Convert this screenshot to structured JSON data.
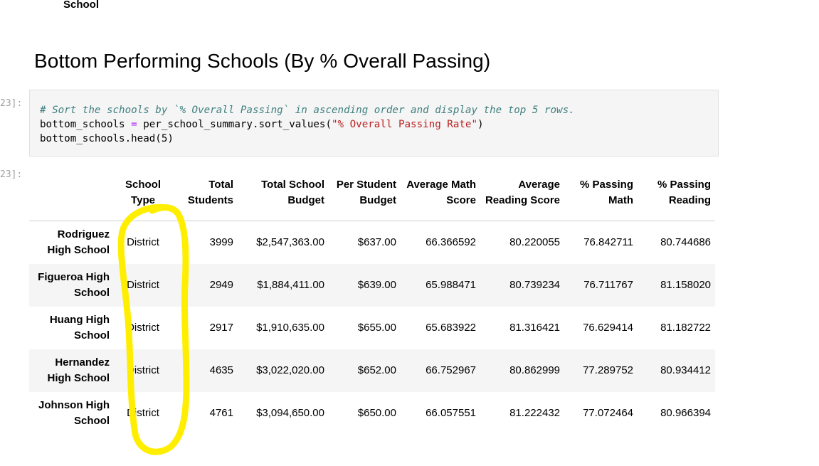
{
  "top_index_label": "School",
  "heading": "Bottom Performing Schools (By % Overall Passing)",
  "prompts": {
    "input": "23]:",
    "output": "23]:"
  },
  "code": {
    "line1_comment": "# Sort the schools by `% Overall Passing` in ascending order and display the top 5 rows.",
    "line2_var": "bottom_schools ",
    "line2_op": "=",
    "line2_call": " per_school_summary.sort_values(",
    "line2_str": "\"% Overall Passing Rate\"",
    "line2_close": ")",
    "line3": "bottom_schools.head(5)"
  },
  "table": {
    "columns": [
      "School Type",
      "Total Students",
      "Total School Budget",
      "Per Student Budget",
      "Average Math Score",
      "Average Reading Score",
      "% Passing Math",
      "% Passing Reading"
    ],
    "rows": [
      {
        "school": "Rodriguez High School",
        "cells": [
          "District",
          "3999",
          "$2,547,363.00",
          "$637.00",
          "66.366592",
          "80.220055",
          "76.842711",
          "80.744686"
        ]
      },
      {
        "school": "Figueroa High School",
        "cells": [
          "District",
          "2949",
          "$1,884,411.00",
          "$639.00",
          "65.988471",
          "80.739234",
          "76.711767",
          "81.158020"
        ]
      },
      {
        "school": "Huang High School",
        "cells": [
          "District",
          "2917",
          "$1,910,635.00",
          "$655.00",
          "65.683922",
          "81.316421",
          "76.629414",
          "81.182722"
        ]
      },
      {
        "school": "Hernandez High School",
        "cells": [
          "District",
          "4635",
          "$3,022,020.00",
          "$652.00",
          "66.752967",
          "80.862999",
          "77.289752",
          "80.934412"
        ]
      },
      {
        "school": "Johnson High School",
        "cells": [
          "District",
          "4761",
          "$3,094,650.00",
          "$650.00",
          "66.057551",
          "81.222432",
          "77.072464",
          "80.966394"
        ]
      }
    ]
  },
  "annotation": {
    "color": "#ffee00",
    "shape": "hand-drawn oval"
  }
}
